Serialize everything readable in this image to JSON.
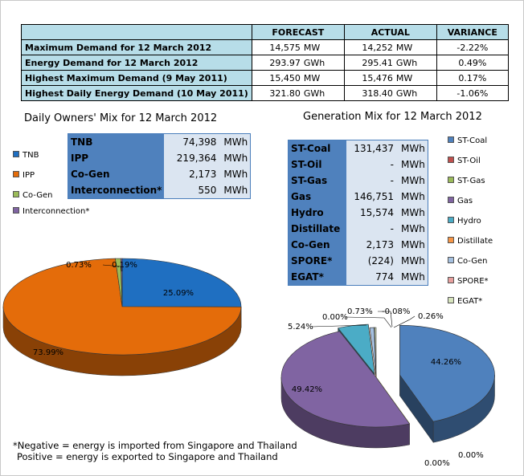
{
  "summary": {
    "headers": [
      "",
      "FORECAST",
      "ACTUAL",
      "VARIANCE"
    ],
    "rows": [
      {
        "label": "Maximum Demand for 12 March 2012",
        "forecast": "14,575",
        "forecast_unit": "MW",
        "actual": "14,252",
        "actual_unit": "MW",
        "variance": "-2.22%"
      },
      {
        "label": "Energy Demand for 12 March 2012",
        "forecast": "293.97",
        "forecast_unit": "GWh",
        "actual": "295.41",
        "actual_unit": "GWh",
        "variance": "0.49%"
      },
      {
        "label": "Highest Maximum Demand (9 May 2011)",
        "forecast": "15,450",
        "forecast_unit": "MW",
        "actual": "15,476",
        "actual_unit": "MW",
        "variance": "0.17%"
      },
      {
        "label": "Highest Daily Energy Demand (10 May 2011)",
        "forecast": "321.80",
        "forecast_unit": "GWh",
        "actual": "318.40",
        "actual_unit": "GWh",
        "variance": "-1.06%"
      }
    ]
  },
  "owners_mix": {
    "title": "Daily Owners' Mix for 12 March 2012",
    "table": [
      {
        "label": "TNB",
        "value": "74,398",
        "unit": "MWh"
      },
      {
        "label": "IPP",
        "value": "219,364",
        "unit": "MWh"
      },
      {
        "label": "Co-Gen",
        "value": "2,173",
        "unit": "MWh"
      },
      {
        "label": "Interconnection*",
        "value": "550",
        "unit": "MWh"
      }
    ],
    "legend": [
      {
        "label": "TNB",
        "color": "#1f6fc1"
      },
      {
        "label": "IPP",
        "color": "#e46c0a"
      },
      {
        "label": "Co-Gen",
        "color": "#9bbb59"
      },
      {
        "label": "Interconnection*",
        "color": "#8064a2"
      }
    ]
  },
  "generation_mix": {
    "title": "Generation Mix for 12 March 2012",
    "table": [
      {
        "label": "ST-Coal",
        "value": "131,437",
        "unit": "MWh"
      },
      {
        "label": "ST-Oil",
        "value": "-",
        "unit": "MWh"
      },
      {
        "label": "ST-Gas",
        "value": "-",
        "unit": "MWh"
      },
      {
        "label": "Gas",
        "value": "146,751",
        "unit": "MWh"
      },
      {
        "label": "Hydro",
        "value": "15,574",
        "unit": "MWh"
      },
      {
        "label": "Distillate",
        "value": "-",
        "unit": "MWh"
      },
      {
        "label": "Co-Gen",
        "value": "2,173",
        "unit": "MWh"
      },
      {
        "label": "SPORE*",
        "value": "(224)",
        "unit": "MWh"
      },
      {
        "label": "EGAT*",
        "value": "774",
        "unit": "MWh"
      }
    ],
    "legend": [
      {
        "label": "ST-Coal",
        "color": "#4f81bd"
      },
      {
        "label": "ST-Oil",
        "color": "#c0504d"
      },
      {
        "label": "ST-Gas",
        "color": "#9bbb59"
      },
      {
        "label": "Gas",
        "color": "#8064a2"
      },
      {
        "label": "Hydro",
        "color": "#4bacc6"
      },
      {
        "label": "Distillate",
        "color": "#f79646"
      },
      {
        "label": "Co-Gen",
        "color": "#a5c0e0"
      },
      {
        "label": "SPORE*",
        "color": "#e8a09e"
      },
      {
        "label": "EGAT*",
        "color": "#d7e4bd"
      }
    ]
  },
  "chart_data": [
    {
      "type": "pie",
      "title": "Daily Owners' Mix for 12 March 2012",
      "categories": [
        "TNB",
        "IPP",
        "Co-Gen",
        "Interconnection*"
      ],
      "values": [
        25.09,
        73.99,
        0.73,
        0.19
      ],
      "labels": [
        "25.09%",
        "73.99%",
        "0.73%",
        "0.19%"
      ],
      "colors": [
        "#1f6fc1",
        "#e46c0a",
        "#9bbb59",
        "#8064a2"
      ],
      "legend": "left"
    },
    {
      "type": "pie",
      "title": "Generation Mix for 12 March 2012",
      "categories": [
        "ST-Coal",
        "ST-Oil",
        "ST-Gas",
        "Gas",
        "Hydro",
        "Distillate",
        "Co-Gen",
        "SPORE*",
        "EGAT*"
      ],
      "values": [
        44.26,
        0.0,
        0.0,
        49.42,
        5.24,
        0.0,
        0.73,
        -0.08,
        0.26
      ],
      "labels": [
        "44.26%",
        "0.00%",
        "0.00%",
        "49.42%",
        "5.24%",
        "0.00%",
        "0.73%",
        "-0.08%",
        "0.26%"
      ],
      "colors": [
        "#4f81bd",
        "#c0504d",
        "#9bbb59",
        "#8064a2",
        "#4bacc6",
        "#f79646",
        "#a5c0e0",
        "#e8a09e",
        "#d7e4bd"
      ],
      "legend": "right"
    }
  ],
  "footnote": {
    "line1": "*Negative = energy is imported from Singapore and Thailand",
    "line2": "Positive = energy is exported to Singapore and Thailand"
  }
}
